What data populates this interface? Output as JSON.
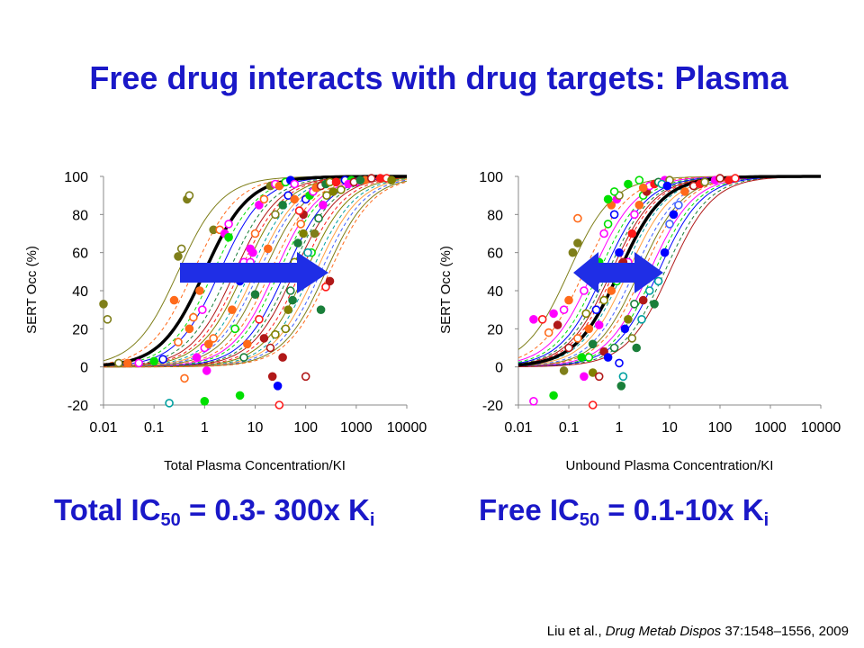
{
  "slide": {
    "title": "Free drug interacts with drug targets: Plasma",
    "left_summary": {
      "prefix": "Total IC",
      "sub": "50",
      "mid": " = 0.3- 300x K",
      "sub2": "i"
    },
    "right_summary": {
      "prefix": "Free IC",
      "sub": "50",
      "mid": " = 0.1-10x K",
      "sub2": "i"
    },
    "citation": {
      "authors": "Liu et al., ",
      "journal": "Drug Metab Dispos",
      "rest": " 37:1548–1556, 2009"
    }
  },
  "colors": {
    "title_blue": "#1a18c8",
    "arrow_blue": "#1f2ee6",
    "palette": [
      "#7f7f1a",
      "#ff6a1a",
      "#ff00ff",
      "#00e000",
      "#0000ff",
      "#1a7f3a",
      "#b01818",
      "#ff1a1a",
      "#808000",
      "#00a0a0",
      "#ffa040",
      "#4060ff"
    ]
  },
  "chart_data": [
    {
      "type": "scatter",
      "title": "",
      "xlabel": "Total Plasma Concentration/KI",
      "ylabel": "SERT Occ (%)",
      "xscale": "log",
      "xlim": [
        0.01,
        10000
      ],
      "ylim": [
        -20,
        100
      ],
      "x_ticks": [
        "0.01",
        "0.1",
        "1",
        "10",
        "100",
        "1000",
        "10000"
      ],
      "y_ticks": [
        "-20",
        "0",
        "20",
        "40",
        "60",
        "80",
        "100"
      ],
      "grid": false,
      "annotation": "arrow pointing right (shift of IC50 across studies)",
      "bold_reference_curve_ic50": 1.0,
      "fitted_curves_ic50": [
        0.3,
        0.6,
        1,
        1.5,
        2,
        3,
        4,
        5,
        6,
        8,
        10,
        12,
        15,
        20,
        25,
        30,
        40,
        50,
        60,
        80,
        100,
        130,
        160,
        200,
        250,
        300
      ],
      "points": [
        [
          0.01,
          33,
          0
        ],
        [
          0.012,
          25,
          0
        ],
        [
          0.3,
          58,
          0
        ],
        [
          0.35,
          62,
          0
        ],
        [
          0.45,
          88,
          0
        ],
        [
          0.5,
          90,
          0
        ],
        [
          0.25,
          35,
          1
        ],
        [
          0.3,
          13,
          1
        ],
        [
          0.5,
          20,
          1
        ],
        [
          0.6,
          26,
          1
        ],
        [
          0.8,
          40,
          1
        ],
        [
          0.4,
          -6,
          1
        ],
        [
          0.7,
          5,
          2
        ],
        [
          1,
          10,
          2
        ],
        [
          1.2,
          12,
          1
        ],
        [
          1.5,
          15,
          1
        ],
        [
          1.1,
          -2,
          2
        ],
        [
          0.9,
          30,
          2
        ],
        [
          1.5,
          72,
          0
        ],
        [
          2,
          72,
          1
        ],
        [
          2.5,
          70,
          2
        ],
        [
          3,
          75,
          2
        ],
        [
          3,
          68,
          3
        ],
        [
          4,
          52,
          3
        ],
        [
          5,
          45,
          4
        ],
        [
          6,
          55,
          2
        ],
        [
          3.5,
          30,
          1
        ],
        [
          4,
          20,
          3
        ],
        [
          5,
          -15,
          3
        ],
        [
          6,
          5,
          5
        ],
        [
          7,
          12,
          1
        ],
        [
          8,
          55,
          2
        ],
        [
          9,
          60,
          2
        ],
        [
          10,
          70,
          1
        ],
        [
          12,
          85,
          2
        ],
        [
          15,
          88,
          1
        ],
        [
          20,
          95,
          0
        ],
        [
          25,
          96,
          2
        ],
        [
          30,
          95,
          1
        ],
        [
          40,
          97,
          3
        ],
        [
          50,
          98,
          4
        ],
        [
          60,
          96,
          2
        ],
        [
          10,
          38,
          5
        ],
        [
          12,
          25,
          7
        ],
        [
          15,
          15,
          6
        ],
        [
          20,
          10,
          6
        ],
        [
          22,
          -5,
          6
        ],
        [
          25,
          17,
          8
        ],
        [
          28,
          -10,
          4
        ],
        [
          30,
          -20,
          7
        ],
        [
          35,
          5,
          6
        ],
        [
          40,
          20,
          8
        ],
        [
          45,
          30,
          8
        ],
        [
          50,
          40,
          5
        ],
        [
          55,
          35,
          5
        ],
        [
          60,
          55,
          8
        ],
        [
          70,
          65,
          5
        ],
        [
          80,
          75,
          1
        ],
        [
          90,
          80,
          6
        ],
        [
          100,
          88,
          4
        ],
        [
          120,
          90,
          3
        ],
        [
          140,
          92,
          2
        ],
        [
          160,
          94,
          1
        ],
        [
          200,
          95,
          6
        ],
        [
          250,
          96,
          5
        ],
        [
          300,
          97,
          8
        ],
        [
          400,
          97,
          7
        ],
        [
          600,
          98,
          4
        ],
        [
          800,
          98,
          3
        ],
        [
          1000,
          97,
          2
        ],
        [
          1500,
          98,
          1
        ],
        [
          2000,
          99,
          6
        ],
        [
          3000,
          99,
          7
        ],
        [
          4000,
          99,
          7
        ],
        [
          5000,
          98,
          8
        ],
        [
          100,
          -5,
          6
        ],
        [
          200,
          30,
          5
        ],
        [
          250,
          42,
          7
        ],
        [
          300,
          45,
          6
        ],
        [
          130,
          60,
          3
        ],
        [
          150,
          70,
          0
        ],
        [
          180,
          78,
          5
        ],
        [
          220,
          85,
          2
        ],
        [
          260,
          90,
          8
        ],
        [
          350,
          92,
          8
        ],
        [
          500,
          93,
          8
        ],
        [
          700,
          96,
          2
        ],
        [
          900,
          97,
          6
        ],
        [
          1200,
          98,
          5
        ],
        [
          0.02,
          2,
          0
        ],
        [
          0.03,
          2,
          1
        ],
        [
          0.05,
          2,
          2
        ],
        [
          0.1,
          3,
          3
        ],
        [
          0.15,
          4,
          4
        ],
        [
          1,
          -18,
          3
        ],
        [
          0.2,
          -19,
          9
        ],
        [
          8,
          62,
          2
        ],
        [
          15,
          48,
          2
        ],
        [
          18,
          62,
          1
        ],
        [
          25,
          80,
          0
        ],
        [
          35,
          85,
          5
        ],
        [
          45,
          90,
          4
        ],
        [
          60,
          88,
          1
        ],
        [
          75,
          82,
          7
        ],
        [
          90,
          70,
          8
        ],
        [
          110,
          60,
          9
        ]
      ]
    },
    {
      "type": "scatter",
      "title": "",
      "xlabel": "Unbound Plasma Concentration/KI",
      "ylabel": "SERT Occ (%)",
      "xscale": "log",
      "xlim": [
        0.01,
        10000
      ],
      "ylim": [
        -20,
        100
      ],
      "x_ticks": [
        "0.01",
        "0.1",
        "1",
        "10",
        "100",
        "1000",
        "10000"
      ],
      "y_ticks": [
        "-20",
        "0",
        "20",
        "40",
        "60",
        "80",
        "100"
      ],
      "grid": false,
      "annotation": "double-headed arrow (narrow IC50 range)",
      "bold_reference_curve_ic50": 1.0,
      "fitted_curves_ic50": [
        0.1,
        0.2,
        0.3,
        0.4,
        0.5,
        0.6,
        0.7,
        0.8,
        1,
        1.2,
        1.5,
        2,
        2.5,
        3,
        4,
        5,
        6,
        8,
        10
      ],
      "points": [
        [
          0.02,
          25,
          2
        ],
        [
          0.03,
          25,
          7
        ],
        [
          0.05,
          28,
          2
        ],
        [
          0.04,
          18,
          1
        ],
        [
          0.06,
          22,
          6
        ],
        [
          0.08,
          30,
          2
        ],
        [
          0.1,
          35,
          1
        ],
        [
          0.1,
          10,
          6
        ],
        [
          0.12,
          60,
          0
        ],
        [
          0.15,
          78,
          1
        ],
        [
          0.15,
          65,
          0
        ],
        [
          0.2,
          40,
          2
        ],
        [
          0.2,
          -5,
          2
        ],
        [
          0.25,
          5,
          3
        ],
        [
          0.25,
          20,
          1
        ],
        [
          0.3,
          45,
          2
        ],
        [
          0.3,
          -3,
          8
        ],
        [
          0.35,
          30,
          4
        ],
        [
          0.4,
          55,
          3
        ],
        [
          0.5,
          70,
          2
        ],
        [
          0.5,
          8,
          6
        ],
        [
          0.6,
          75,
          3
        ],
        [
          0.7,
          85,
          1
        ],
        [
          0.8,
          80,
          4
        ],
        [
          0.9,
          88,
          2
        ],
        [
          1,
          90,
          0
        ],
        [
          1,
          60,
          4
        ],
        [
          1,
          2,
          4
        ],
        [
          1.1,
          -10,
          5
        ],
        [
          1.2,
          -5,
          9
        ],
        [
          1.3,
          50,
          6
        ],
        [
          1.5,
          55,
          2
        ],
        [
          1.8,
          70,
          7
        ],
        [
          2,
          80,
          2
        ],
        [
          2.5,
          85,
          1
        ],
        [
          3,
          90,
          3
        ],
        [
          3.5,
          92,
          6
        ],
        [
          4,
          95,
          2
        ],
        [
          5,
          96,
          7
        ],
        [
          6,
          97,
          5
        ],
        [
          8,
          98,
          2
        ],
        [
          10,
          98,
          0
        ],
        [
          0.05,
          -15,
          3
        ],
        [
          0.02,
          -18,
          2
        ],
        [
          0.08,
          -2,
          0
        ],
        [
          0.3,
          -20,
          7
        ],
        [
          0.6,
          5,
          4
        ],
        [
          0.8,
          10,
          5
        ],
        [
          1.5,
          25,
          8
        ],
        [
          2,
          33,
          5
        ],
        [
          3,
          35,
          6
        ],
        [
          4,
          40,
          9
        ],
        [
          5,
          33,
          5
        ],
        [
          6,
          45,
          9
        ],
        [
          8,
          60,
          4
        ],
        [
          10,
          75,
          11
        ],
        [
          12,
          80,
          4
        ],
        [
          15,
          85,
          11
        ],
        [
          20,
          92,
          1
        ],
        [
          30,
          95,
          6
        ],
        [
          40,
          96,
          7
        ],
        [
          50,
          97,
          0
        ],
        [
          80,
          98,
          2
        ],
        [
          100,
          99,
          6
        ],
        [
          150,
          98,
          7
        ],
        [
          200,
          99,
          7
        ],
        [
          0.4,
          22,
          2
        ],
        [
          0.5,
          35,
          8
        ],
        [
          0.7,
          40,
          1
        ],
        [
          0.9,
          45,
          3
        ],
        [
          1.2,
          55,
          6
        ],
        [
          0.15,
          15,
          1
        ],
        [
          0.18,
          5,
          3
        ],
        [
          0.22,
          28,
          8
        ],
        [
          0.3,
          12,
          5
        ],
        [
          0.4,
          -5,
          6
        ],
        [
          1.3,
          20,
          4
        ],
        [
          1.8,
          15,
          0
        ],
        [
          2.2,
          10,
          5
        ],
        [
          2.8,
          25,
          9
        ],
        [
          0.6,
          88,
          3
        ],
        [
          0.8,
          92,
          3
        ],
        [
          1.5,
          96,
          3
        ],
        [
          2.5,
          98,
          3
        ],
        [
          3,
          94,
          1
        ],
        [
          7,
          96,
          9
        ],
        [
          9,
          95,
          4
        ]
      ]
    }
  ]
}
